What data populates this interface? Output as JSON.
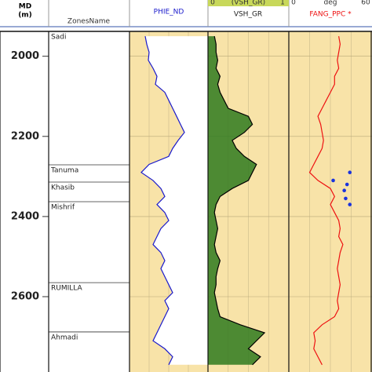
{
  "chart_data": {
    "type": "well-log",
    "depth_label": [
      "MD",
      "(m)"
    ],
    "zones_header": "ZonesName",
    "ylim": [
      1938,
      2788
    ],
    "yticks": [
      2000,
      2200,
      2400,
      2600
    ],
    "depth": [
      1950,
      1970,
      1990,
      2010,
      2030,
      2050,
      2070,
      2090,
      2110,
      2130,
      2150,
      2170,
      2190,
      2210,
      2230,
      2250,
      2270,
      2290,
      2310,
      2330,
      2350,
      2370,
      2390,
      2410,
      2430,
      2450,
      2470,
      2490,
      2510,
      2530,
      2550,
      2570,
      2590,
      2610,
      2630,
      2650,
      2670,
      2690,
      2710,
      2730,
      2750,
      2770
    ],
    "zones": [
      {
        "name": "Sadi",
        "top": 1938
      },
      {
        "name": "Tanuma",
        "top": 2271
      },
      {
        "name": "Khasib",
        "top": 2314
      },
      {
        "name": "Mishrif",
        "top": 2363
      },
      {
        "name": "RUMILLA",
        "top": 2565
      },
      {
        "name": "Ahmadi",
        "top": 2688
      }
    ],
    "tracks": [
      {
        "name": "PHIE_ND",
        "color": "#1a1acc",
        "xlim": [
          0,
          1
        ],
        "values": [
          0.2,
          0.22,
          0.25,
          0.24,
          0.3,
          0.35,
          0.33,
          0.45,
          0.5,
          0.55,
          0.6,
          0.65,
          0.7,
          0.62,
          0.55,
          0.5,
          0.25,
          0.15,
          0.3,
          0.4,
          0.45,
          0.35,
          0.45,
          0.5,
          0.4,
          0.35,
          0.3,
          0.4,
          0.45,
          0.4,
          0.45,
          0.5,
          0.55,
          0.45,
          0.5,
          0.45,
          0.4,
          0.35,
          0.3,
          0.45,
          0.55,
          0.5
        ]
      },
      {
        "name": "VSH_GR",
        "color": "#000000",
        "fill": "#2f7a1e",
        "xlim": [
          0,
          1
        ],
        "scale_labels": [
          "0",
          "(VSH_GR)",
          "1"
        ],
        "values": [
          0.08,
          0.1,
          0.1,
          0.12,
          0.1,
          0.15,
          0.12,
          0.15,
          0.2,
          0.25,
          0.5,
          0.55,
          0.45,
          0.3,
          0.35,
          0.45,
          0.6,
          0.55,
          0.5,
          0.3,
          0.15,
          0.1,
          0.08,
          0.1,
          0.12,
          0.1,
          0.08,
          0.1,
          0.15,
          0.12,
          0.1,
          0.1,
          0.08,
          0.1,
          0.12,
          0.15,
          0.4,
          0.7,
          0.6,
          0.5,
          0.65,
          0.55
        ]
      },
      {
        "name": "FANG_PPC *",
        "color": "#ee1111",
        "xlim": [
          0,
          60
        ],
        "scale_labels": [
          "0",
          "deg",
          "60"
        ],
        "values": [
          36,
          37,
          36,
          35,
          36,
          33,
          33,
          30,
          27,
          24,
          21,
          23,
          24,
          25,
          24,
          21,
          18,
          15,
          21,
          30,
          33,
          30,
          33,
          36,
          37,
          36,
          39,
          37,
          36,
          35,
          36,
          37,
          36,
          35,
          36,
          33,
          24,
          18,
          19,
          18,
          21,
          24
        ],
        "points": {
          "color": "#1a33dd",
          "depth": [
            2290,
            2310,
            2320,
            2335,
            2355,
            2370
          ],
          "values": [
            44,
            32,
            42,
            40,
            41,
            44
          ]
        }
      }
    ]
  }
}
